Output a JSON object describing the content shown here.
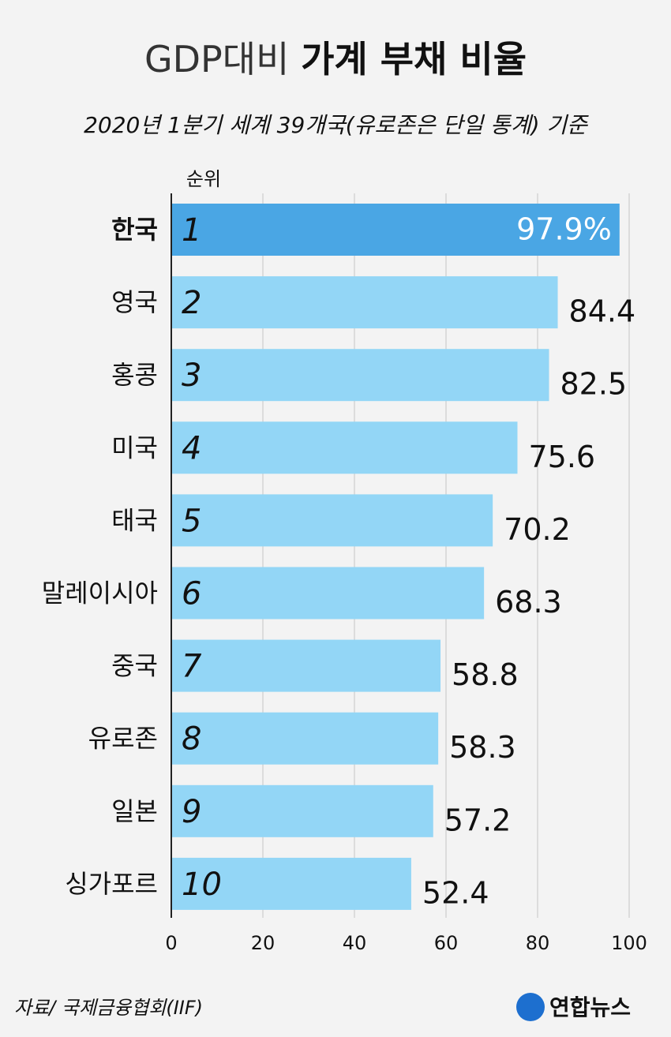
{
  "chart_data": {
    "type": "hbar",
    "title": [
      "GDP대비",
      "가계 부채 비율"
    ],
    "subtitle": "2020년 1분기 세계 39개국(유로존은 단일 통계) 기준",
    "rank_header": "순위",
    "categories": [
      "한국",
      "영국",
      "홍콩",
      "미국",
      "태국",
      "말레이시아",
      "중국",
      "유로존",
      "일본",
      "싱가포르"
    ],
    "ranks": [
      1,
      2,
      3,
      4,
      5,
      6,
      7,
      8,
      9,
      10
    ],
    "values": [
      97.9,
      84.4,
      82.5,
      75.6,
      70.2,
      68.3,
      58.8,
      58.3,
      57.2,
      52.4
    ],
    "value_labels": [
      "97.9%",
      "84.4",
      "82.5",
      "75.6",
      "70.2",
      "68.3",
      "58.8",
      "58.3",
      "57.2",
      "52.4"
    ],
    "colors": [
      "#4aa6e4",
      "#93d6f6"
    ],
    "xlim": [
      0,
      100
    ],
    "xticks": [
      0,
      20,
      40,
      60,
      80,
      100
    ],
    "grid": true,
    "source": "자료/ 국제금융협회(IIF)",
    "logo": "연합뉴스"
  }
}
